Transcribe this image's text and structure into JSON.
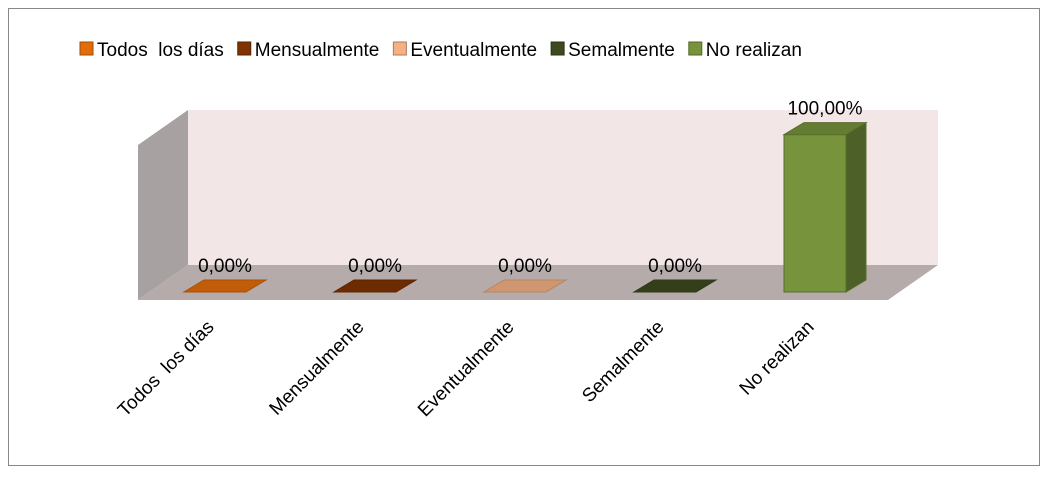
{
  "chart_data": {
    "type": "bar3d",
    "categories": [
      "Todos  los días",
      "Mensualmente",
      "Eventualmente",
      "Semalmente",
      "No realizan"
    ],
    "values": [
      0,
      0,
      0,
      0,
      100
    ],
    "value_labels": [
      "0,00%",
      "0,00%",
      "0,00%",
      "0,00%",
      "100,00%"
    ],
    "colors": [
      "#e36c09",
      "#7f3300",
      "#f4b183",
      "#3d4a1f",
      "#77933c"
    ],
    "ylim": [
      0,
      115
    ],
    "legend": "top"
  }
}
